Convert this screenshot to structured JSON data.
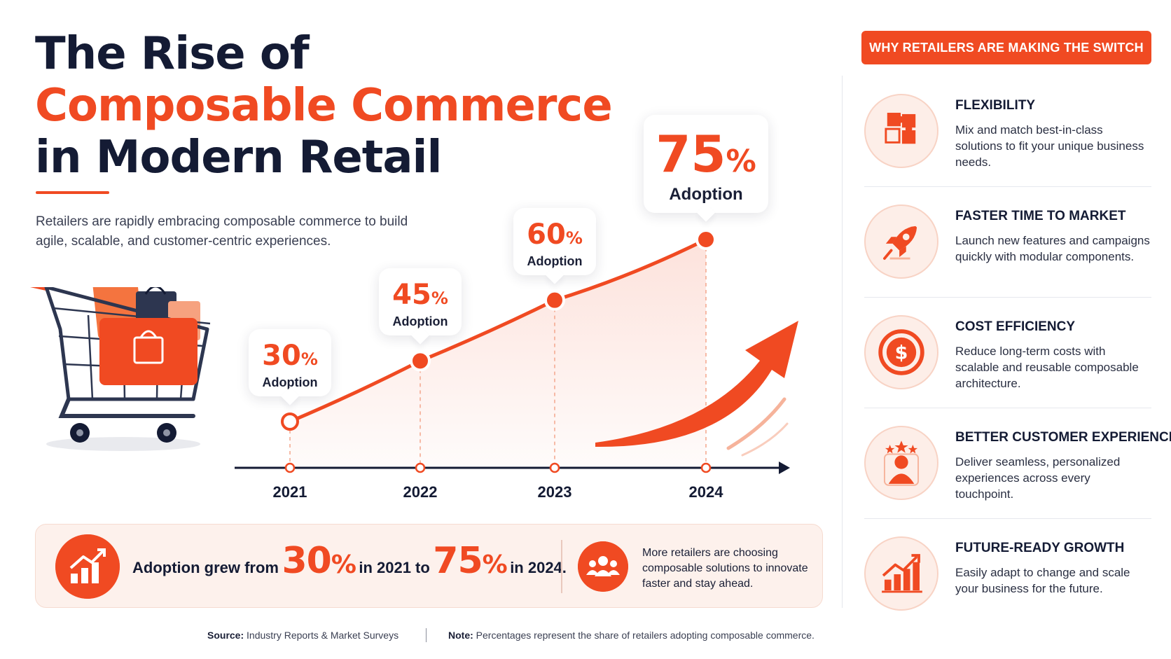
{
  "title": {
    "line1": "The Rise of",
    "line2": "Composable Commerce",
    "line3": "in Modern Retail"
  },
  "subtitle": "Retailers are rapidly embracing composable commerce to build agile, scalable, and customer-centric experiences.",
  "chart_data": {
    "type": "line",
    "title": "",
    "xlabel": "",
    "ylabel": "",
    "x": [
      "2021",
      "2022",
      "2023",
      "2024"
    ],
    "series": [
      {
        "values": [
          30,
          45,
          60,
          75
        ]
      }
    ],
    "unit": "%",
    "data_labels": [
      {
        "value": "30",
        "unit": "%",
        "label": "Adoption"
      },
      {
        "value": "45",
        "unit": "%",
        "label": "Adoption"
      },
      {
        "value": "60",
        "unit": "%",
        "label": "Adoption"
      },
      {
        "value": "75",
        "unit": "%",
        "label": "Adoption"
      }
    ],
    "area_fill": true,
    "trend_arrow": true,
    "grid": false
  },
  "summary": {
    "prefix": "Adoption grew from",
    "start_value": "30",
    "start_unit": "%",
    "middle": "in 2021 to",
    "end_value": "75",
    "end_unit": "%",
    "suffix": "in 2024.",
    "note": "More retailers are choosing composable solutions to innovate faster and stay ahead.",
    "icons": [
      "growth-chart-icon",
      "people-group-icon"
    ]
  },
  "footer": {
    "source_label": "Source:",
    "source_text": "Industry Reports & Market Surveys",
    "note_label": "Note:",
    "note_text": "Percentages represent the share of retailers adopting composable commerce."
  },
  "panel": {
    "heading": "WHY RETAILERS ARE MAKING THE SWITCH",
    "items": [
      {
        "title": "FLEXIBILITY",
        "desc": "Mix and match best-in-class solutions to fit your unique business needs.",
        "icon": "puzzle-icon"
      },
      {
        "title": "FASTER TIME TO MARKET",
        "desc": "Launch new features and campaigns quickly with modular components.",
        "icon": "rocket-icon"
      },
      {
        "title": "COST EFFICIENCY",
        "desc": "Reduce long-term costs with scalable and reusable composable architecture.",
        "icon": "dollar-coin-icon"
      },
      {
        "title": "BETTER CUSTOMER EXPERIENCE",
        "desc": "Deliver seamless, personalized experiences across every touchpoint.",
        "icon": "customer-stars-icon"
      },
      {
        "title": "FUTURE-READY GROWTH",
        "desc": "Easily adapt to change and scale your business for the future.",
        "icon": "growth-bars-icon"
      }
    ]
  },
  "colors": {
    "accent": "#f04a22",
    "navy": "#141b34",
    "soft": "#fdeee8"
  }
}
